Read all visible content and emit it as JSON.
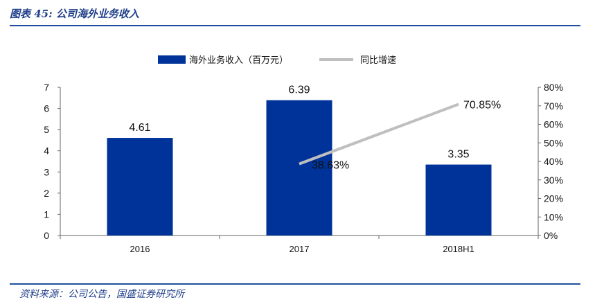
{
  "figure": {
    "title": "图表 45:  公司海外业务收入",
    "source": "资料来源：公司公告，国盛证券研究所"
  },
  "colors": {
    "bar": "#003399",
    "line": "#bfbfbf",
    "accent_rule": "#1f4e9a"
  },
  "chart_data": {
    "type": "bar",
    "categories": [
      "2016",
      "2017",
      "2018H1"
    ],
    "series": [
      {
        "name": "海外业务收入（百万元）",
        "type": "bar",
        "axis": "left",
        "values": [
          4.61,
          6.39,
          3.35
        ],
        "labels": [
          "4.61",
          "6.39",
          "3.35"
        ]
      },
      {
        "name": "同比增速",
        "type": "line",
        "axis": "right",
        "x": [
          "2017",
          "2018H1"
        ],
        "values": [
          38.63,
          70.85
        ],
        "labels": [
          "38.63%",
          "70.85%"
        ]
      }
    ],
    "y_left": {
      "min": 0,
      "max": 7,
      "ticks": [
        "0",
        "1",
        "2",
        "3",
        "4",
        "5",
        "6",
        "7"
      ]
    },
    "y_right": {
      "min": 0,
      "max": 80,
      "ticks": [
        "0%",
        "10%",
        "20%",
        "30%",
        "40%",
        "50%",
        "60%",
        "70%",
        "80%"
      ]
    },
    "legend": "top-center",
    "grid": false
  }
}
